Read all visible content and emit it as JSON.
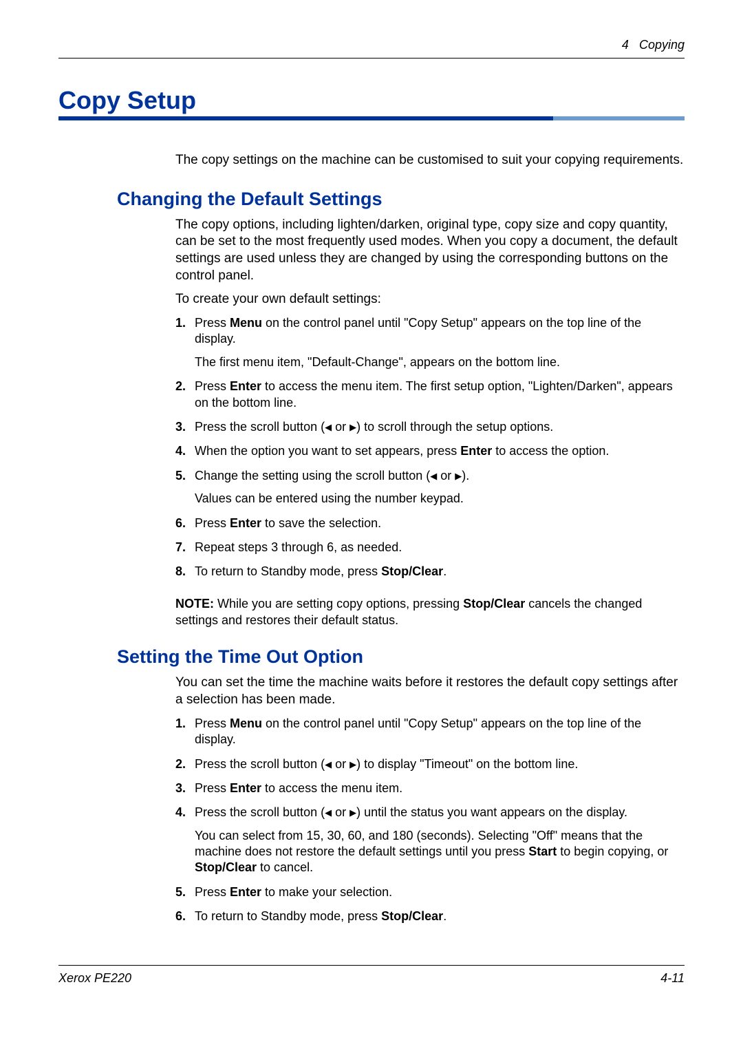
{
  "header": {
    "chapter_num": "4",
    "chapter_title": "Copying"
  },
  "h1": "Copy Setup",
  "intro": "The copy settings on the machine can be customised to suit your copying requirements.",
  "section1": {
    "title": "Changing the Default Settings",
    "p1": "The copy options, including lighten/darken, original type, copy size and copy quantity, can be set to the most frequently used modes. When you copy a document, the default settings are used unless they are changed by using the corresponding buttons on the control panel.",
    "p2": "To create your own default settings:",
    "steps": [
      {
        "n": "1.",
        "pre": "Press ",
        "b1": "Menu",
        "post": " on the control panel until \"Copy Setup\" appears on the top line of the display.",
        "sub": "The first menu item, \"Default-Change\", appears on the bottom line."
      },
      {
        "n": "2.",
        "pre": "Press ",
        "b1": "Enter",
        "post": " to access the menu item. The first setup option, \"Lighten/Darken\", appears on the bottom line."
      },
      {
        "n": "3.",
        "pre": "Press the scroll button (",
        "post": ") to scroll through the setup options.",
        "arrows": true
      },
      {
        "n": "4.",
        "pre": "When the option you want to set appears, press ",
        "b1": "Enter",
        "post": " to access the option."
      },
      {
        "n": "5.",
        "pre": "Change the setting using the scroll button (",
        "post": ").",
        "arrows": true,
        "sub": "Values can be entered using the number keypad."
      },
      {
        "n": "6.",
        "pre": "Press ",
        "b1": "Enter",
        "post": " to save the selection."
      },
      {
        "n": "7.",
        "pre": "Repeat steps 3 through 6, as needed."
      },
      {
        "n": "8.",
        "pre": "To return to Standby mode, press ",
        "b1": "Stop/Clear",
        "post": "."
      }
    ],
    "note": {
      "label": "NOTE:",
      "pre": " While you are setting copy options, pressing ",
      "b1": "Stop/Clear",
      "post": " cancels the changed settings and restores their default status."
    }
  },
  "section2": {
    "title": "Setting the Time Out Option",
    "p1": "You can set the time the machine waits before it restores the default copy settings after a selection has been made.",
    "steps": [
      {
        "n": "1.",
        "pre": "Press ",
        "b1": "Menu",
        "post": " on the control panel until \"Copy Setup\" appears on the top line of the display."
      },
      {
        "n": "2.",
        "pre": "Press the scroll button (",
        "post": ") to display \"Timeout\" on the bottom line.",
        "arrows": true
      },
      {
        "n": "3.",
        "pre": "Press ",
        "b1": "Enter",
        "post": " to access the menu item."
      },
      {
        "n": "4.",
        "pre": "Press the scroll button (",
        "post": ") until the status you want appears on the display.",
        "arrows": true,
        "sub_html": true,
        "sub_pre": "You can select from 15, 30, 60, and 180 (seconds). Selecting \"Off\" means that the machine does not restore the default settings until you press ",
        "sub_b1": "Start",
        "sub_mid": " to begin copying, or ",
        "sub_b2": "Stop/Clear",
        "sub_post": " to cancel."
      },
      {
        "n": "5.",
        "pre": "Press ",
        "b1": "Enter",
        "post": " to make your selection."
      },
      {
        "n": "6.",
        "pre": "To return to Standby mode, press ",
        "b1": "Stop/Clear",
        "post": "."
      }
    ]
  },
  "footer": {
    "left": "Xerox PE220",
    "right": "4-11"
  },
  "colors": {
    "heading": "#003399",
    "underline_light": "#6c9bd1",
    "text": "#000000"
  }
}
